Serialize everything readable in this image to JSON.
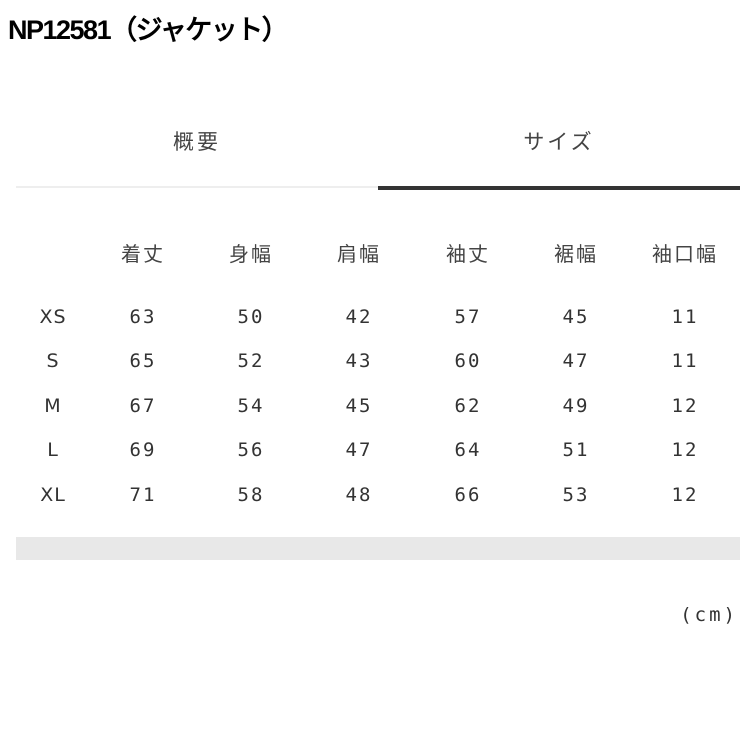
{
  "title": "NP12581（ジャケット）",
  "tabs": [
    {
      "label": "概要",
      "active": false
    },
    {
      "label": "サイズ",
      "active": true
    }
  ],
  "table": {
    "columns": [
      "着丈",
      "身幅",
      "肩幅",
      "袖丈",
      "裾幅",
      "袖口幅"
    ],
    "rows": [
      {
        "size": "XS",
        "values": [
          "63",
          "50",
          "42",
          "57",
          "45",
          "11"
        ]
      },
      {
        "size": "S",
        "values": [
          "65",
          "52",
          "43",
          "60",
          "47",
          "11"
        ]
      },
      {
        "size": "M",
        "values": [
          "67",
          "54",
          "45",
          "62",
          "49",
          "12"
        ]
      },
      {
        "size": "L",
        "values": [
          "69",
          "56",
          "47",
          "64",
          "51",
          "12"
        ]
      },
      {
        "size": "XL",
        "values": [
          "71",
          "58",
          "48",
          "66",
          "53",
          "12"
        ]
      }
    ]
  },
  "unit": "(cm)",
  "colors": {
    "active_tab_underline": "#333333",
    "inactive_tab_underline": "#eeeeee",
    "footer_bar": "#e8e8e8"
  }
}
